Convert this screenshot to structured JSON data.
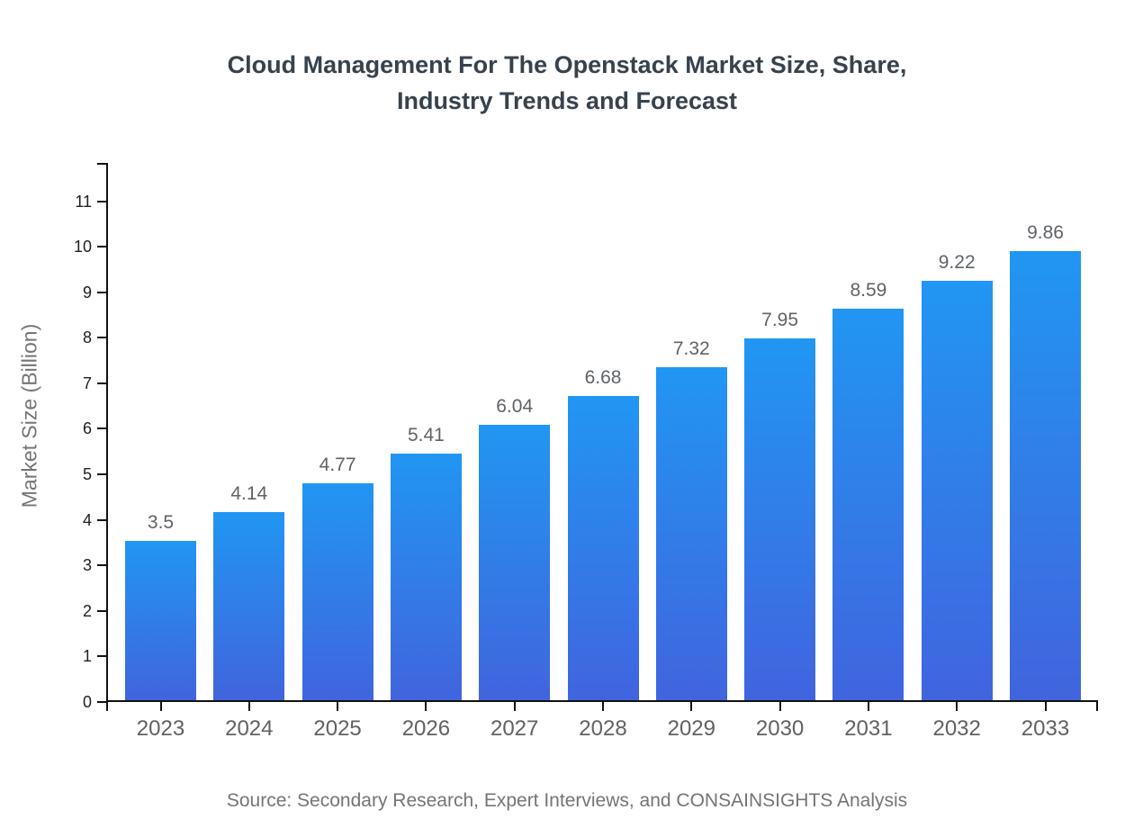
{
  "title_lines": {
    "line1": "Cloud Management For The Openstack Market Size, Share,",
    "line2": "Industry Trends and Forecast"
  },
  "source_note": "Source: Secondary Research, Expert Interviews, and CONSAINSIGHTS Analysis",
  "chart_data": {
    "type": "bar",
    "title": "Cloud Management For The Openstack Market Size, Share, Industry Trends and Forecast",
    "categories": [
      "2023",
      "2024",
      "2025",
      "2026",
      "2027",
      "2028",
      "2029",
      "2030",
      "2031",
      "2032",
      "2033"
    ],
    "values": [
      3.5,
      4.14,
      4.77,
      5.41,
      6.04,
      6.68,
      7.32,
      7.95,
      8.59,
      9.22,
      9.86
    ],
    "value_labels": [
      "3.5",
      "4.14",
      "4.77",
      "5.41",
      "6.04",
      "6.68",
      "7.32",
      "7.95",
      "8.59",
      "9.22",
      "9.86"
    ],
    "xlabel": "",
    "ylabel": "Market Size (Billion)",
    "yticks": [
      0,
      1,
      2,
      3,
      4,
      5,
      6,
      7,
      8,
      9,
      10,
      11
    ],
    "ylim": [
      0,
      11.84
    ],
    "grid": false,
    "legend_position": "none",
    "source": "Source: Secondary Research, Expert Interviews, and CONSAINSIGHTS Analysis"
  },
  "colors": {
    "bar_gradient_top": "#2196f3",
    "bar_gradient_bottom": "#4164de",
    "axis": "#111111",
    "title_text": "#37424c",
    "y_tick_text": "#1f1f1f",
    "x_tick_text": "#616161",
    "value_label_text": "#5f6368",
    "source_text": "#757575",
    "background": "#ffffff"
  }
}
